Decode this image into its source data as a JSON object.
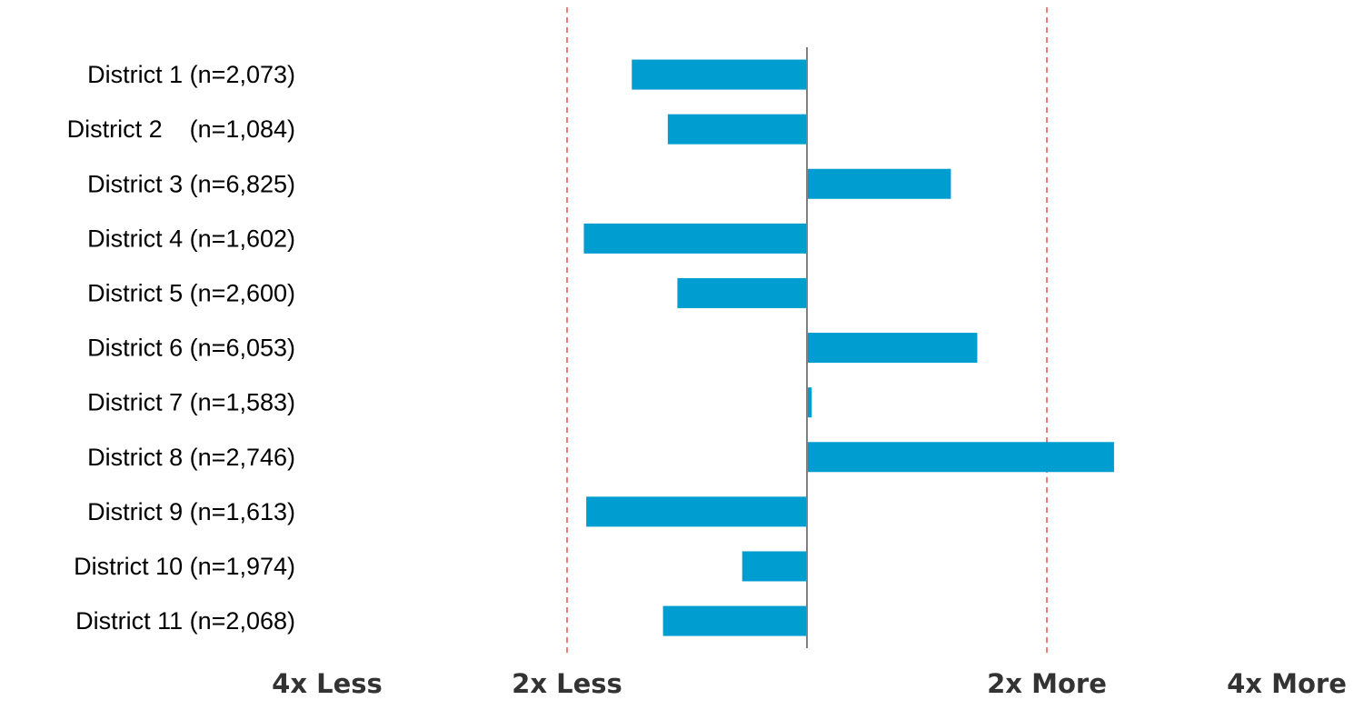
{
  "chart_data": {
    "type": "bar",
    "orientation": "horizontal",
    "scale": "log2",
    "categories": [
      "District 1 (n=2,073)",
      "District 2    (n=1,084)",
      "District 3 (n=6,825)",
      "District 4 (n=1,602)",
      "District 5 (n=2,600)",
      "District 6 (n=6,053)",
      "District 7 (n=1,583)",
      "District 8 (n=2,746)",
      "District 9 (n=1,613)",
      "District 10 (n=1,974)",
      "District 11 (n=2,068)"
    ],
    "values": [
      -0.73,
      -0.58,
      0.6,
      -0.93,
      -0.54,
      0.71,
      0.02,
      1.28,
      -0.92,
      -0.27,
      -0.6
    ],
    "xlim": [
      -2,
      2.35
    ],
    "x_ticks": [
      {
        "value": -2,
        "label": "4x Less"
      },
      {
        "value": -1,
        "label": "2x Less"
      },
      {
        "value": 1,
        "label": "2x More"
      },
      {
        "value": 2,
        "label": "4x More"
      }
    ],
    "reference_lines": [
      -1,
      1
    ],
    "zero_line": 0,
    "title": "",
    "xlabel": "",
    "ylabel": "",
    "grid": false,
    "legend": "none",
    "colors": {
      "bar": "#009dd1",
      "reference_line": "#e8534a",
      "zero_line": "#808080",
      "tick_label": "#333333",
      "category_label": "#000000"
    }
  }
}
